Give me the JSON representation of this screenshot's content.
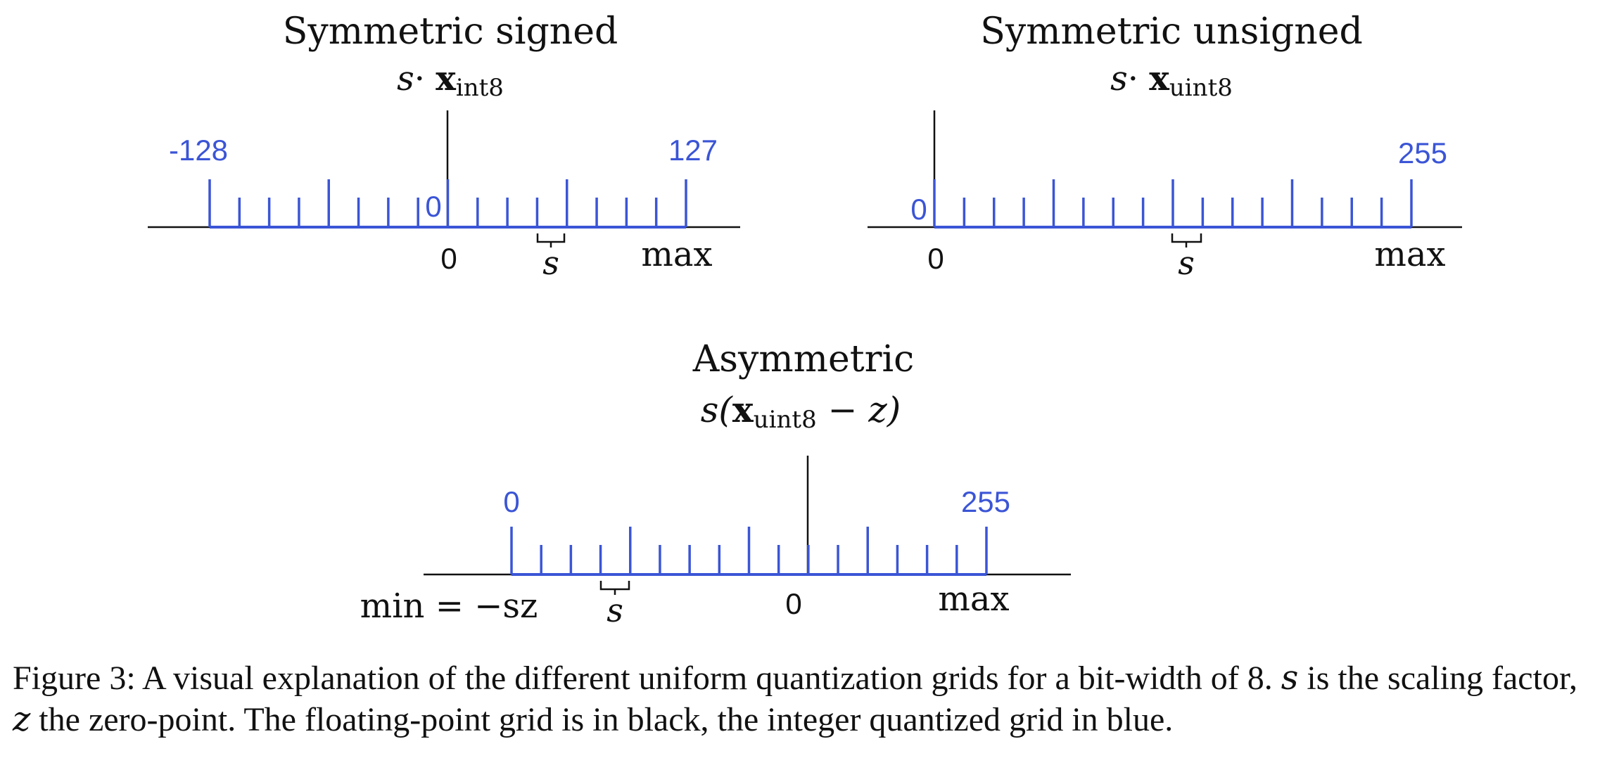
{
  "panels": {
    "signed": {
      "title": "Symmetric signed",
      "formula_s": "s",
      "formula_dot": "·",
      "formula_x": "x",
      "formula_sub": "int8",
      "int_min": "-128",
      "int_max": "127",
      "int_zero": "0",
      "float_zero": "0",
      "float_max": "max",
      "scale": "s"
    },
    "unsigned": {
      "title": "Symmetric unsigned",
      "formula_s": "s",
      "formula_dot": "·",
      "formula_x": "x",
      "formula_sub": "uint8",
      "int_zero": "0",
      "int_max": "255",
      "float_zero": "0",
      "float_max": "max",
      "scale": "s"
    },
    "asymmetric": {
      "title": "Asymmetric",
      "formula_open": "s(",
      "formula_x": "x",
      "formula_sub": "uint8",
      "formula_tail": " − z)",
      "int_zero": "0",
      "int_max": "255",
      "float_min": "min = −sz",
      "float_zero": "0",
      "float_max": "max",
      "scale": "s"
    }
  },
  "caption": {
    "label": "Figure 3: A visual explanation of the different uniform quantization grids for a bit-width of 8.",
    "s_var": "s",
    "part2": " is the scaling factor, ",
    "z_var": "z",
    "part3": " the zero-point. The floating-point grid is in black, the integer quantized grid in blue."
  },
  "colors": {
    "integer_grid": "#3b55d6",
    "float_grid": "#111111"
  }
}
